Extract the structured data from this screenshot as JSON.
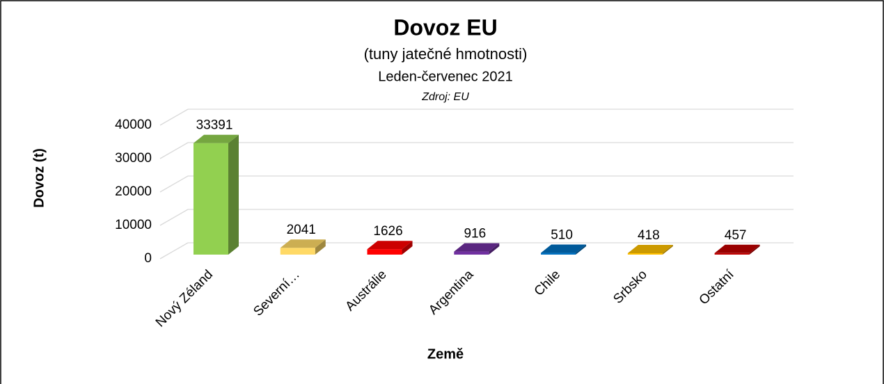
{
  "chart_data": {
    "type": "bar3d",
    "title": "Dovoz EU",
    "subtitle": "(tuny jatečné hmotnosti)",
    "period": "Leden-červenec 2021",
    "source": "Zdroj: EU",
    "y_label": "Dovoz (t)",
    "x_label": "Země",
    "categories": [
      "Nový Zéland",
      "Severní…",
      "Austrálie",
      "Argentina",
      "Chile",
      "Srbsko",
      "Ostatní"
    ],
    "values": [
      33391,
      2041,
      1626,
      916,
      510,
      418,
      457
    ],
    "colors": [
      "#92d050",
      "#ffd966",
      "#ff0000",
      "#7030a0",
      "#0070c0",
      "#ffc000",
      "#c00000"
    ],
    "ylim": [
      0,
      40000
    ],
    "yticks": [
      0,
      10000,
      20000,
      30000,
      40000
    ],
    "grid": true
  }
}
